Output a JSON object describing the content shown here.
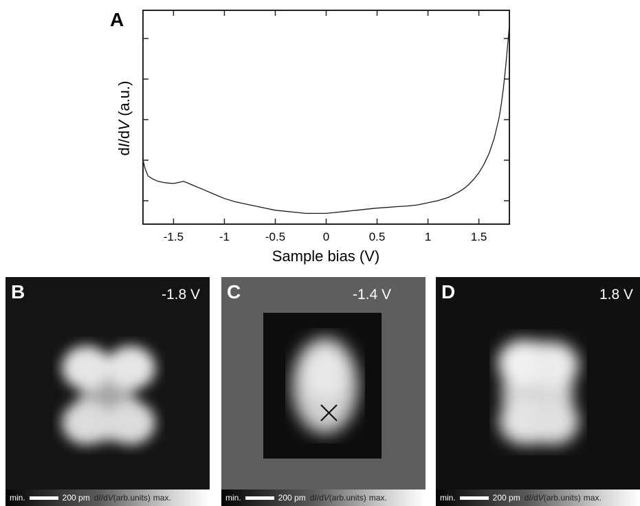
{
  "panel_a": {
    "label": "A",
    "chart_data": {
      "type": "line",
      "xlabel": "Sample bias (V)",
      "ylabel_parts": [
        "d",
        "I",
        "/d",
        "V",
        " (a.u.)"
      ],
      "xlim": [
        -1.8,
        1.8
      ],
      "ylim": [
        0,
        1
      ],
      "xticks": [
        -1.5,
        -1,
        -0.5,
        0,
        0.5,
        1,
        1.5
      ],
      "xtick_labels": [
        "-1.5",
        "-1",
        "-0.5",
        "0",
        "0.5",
        "1",
        "1.5"
      ],
      "y_tick_count": 5,
      "grid": false,
      "series": [
        {
          "x": [
            -1.8,
            -1.78,
            -1.75,
            -1.7,
            -1.65,
            -1.6,
            -1.55,
            -1.5,
            -1.45,
            -1.4,
            -1.35,
            -1.3,
            -1.2,
            -1.1,
            -1.0,
            -0.9,
            -0.8,
            -0.7,
            -0.6,
            -0.5,
            -0.4,
            -0.3,
            -0.2,
            -0.1,
            0,
            0.1,
            0.2,
            0.3,
            0.4,
            0.5,
            0.6,
            0.7,
            0.8,
            0.9,
            1.0,
            1.1,
            1.2,
            1.3,
            1.35,
            1.4,
            1.45,
            1.5,
            1.55,
            1.6,
            1.65,
            1.7,
            1.72,
            1.74,
            1.76,
            1.78,
            1.8
          ],
          "y": [
            0.3,
            0.26,
            0.225,
            0.21,
            0.2,
            0.195,
            0.192,
            0.19,
            0.195,
            0.2,
            0.19,
            0.18,
            0.16,
            0.14,
            0.12,
            0.105,
            0.095,
            0.085,
            0.075,
            0.065,
            0.06,
            0.055,
            0.05,
            0.05,
            0.05,
            0.055,
            0.06,
            0.065,
            0.07,
            0.075,
            0.078,
            0.082,
            0.085,
            0.09,
            0.1,
            0.11,
            0.125,
            0.15,
            0.165,
            0.185,
            0.21,
            0.24,
            0.28,
            0.33,
            0.4,
            0.5,
            0.56,
            0.63,
            0.72,
            0.82,
            0.93
          ]
        }
      ]
    }
  },
  "panels": [
    {
      "label": "B",
      "bias": "-1.8 V"
    },
    {
      "label": "C",
      "bias": "-1.4 V"
    },
    {
      "label": "D",
      "bias": "1.8 V"
    }
  ],
  "colorbar": {
    "min": "min.",
    "scale": "200 pm",
    "unit_parts": [
      "d",
      "I",
      "/d",
      "V",
      "(arb.units)"
    ],
    "max": "max."
  },
  "colors": {
    "stroke": "#1a1a1a",
    "background_c": "#5e5e5e"
  }
}
